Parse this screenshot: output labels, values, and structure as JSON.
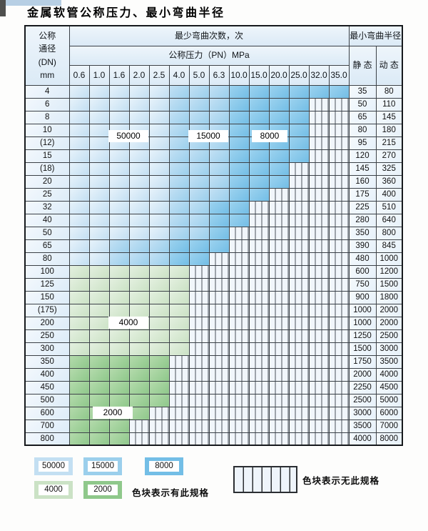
{
  "title": "金属软管公称压力、最小弯曲半径",
  "table": {
    "dn_header_lines": [
      "公称",
      "通径",
      "(DN)",
      "mm"
    ],
    "bend_cycles_header": "最少弯曲次数，次",
    "pressure_header": "公称压力（PN）MPa",
    "pressure_columns": [
      "0.6",
      "1.0",
      "1.6",
      "2.0",
      "2.5",
      "4.0",
      "5.0",
      "6.3",
      "10.0",
      "15.0",
      "20.0",
      "25.0",
      "32.0",
      "35.0"
    ],
    "radius_header": "最小弯曲半径",
    "static_header": "静 态",
    "dynamic_header": "动 态",
    "rows": [
      {
        "dn": "4",
        "static": "35",
        "dynamic": "80",
        "cells": [
          [
            "b1",
            5
          ],
          [
            "b2",
            3
          ],
          [
            "b3",
            6
          ]
        ]
      },
      {
        "dn": "6",
        "static": "50",
        "dynamic": "110",
        "cells": [
          [
            "b1",
            5
          ],
          [
            "b2",
            3
          ],
          [
            "b3",
            4
          ],
          [
            "x",
            2
          ]
        ]
      },
      {
        "dn": "8",
        "static": "65",
        "dynamic": "145",
        "cells": [
          [
            "b1",
            5
          ],
          [
            "b2",
            3
          ],
          [
            "b3",
            4
          ],
          [
            "x",
            2
          ]
        ]
      },
      {
        "dn": "10",
        "static": "80",
        "dynamic": "180",
        "cells": [
          [
            "b1",
            5
          ],
          [
            "b2",
            3
          ],
          [
            "b3",
            4
          ],
          [
            "x",
            2
          ]
        ]
      },
      {
        "dn": "(12)",
        "static": "95",
        "dynamic": "215",
        "cells": [
          [
            "b1",
            5
          ],
          [
            "b2",
            3
          ],
          [
            "b3",
            4
          ],
          [
            "x",
            2
          ]
        ]
      },
      {
        "dn": "15",
        "static": "120",
        "dynamic": "270",
        "cells": [
          [
            "b1",
            5
          ],
          [
            "b2",
            3
          ],
          [
            "b3",
            4
          ],
          [
            "x",
            2
          ]
        ]
      },
      {
        "dn": "(18)",
        "static": "145",
        "dynamic": "325",
        "cells": [
          [
            "b1",
            5
          ],
          [
            "b2",
            3
          ],
          [
            "b3",
            3
          ],
          [
            "x",
            3
          ]
        ]
      },
      {
        "dn": "20",
        "static": "160",
        "dynamic": "360",
        "cells": [
          [
            "b1",
            5
          ],
          [
            "b2",
            3
          ],
          [
            "b3",
            3
          ],
          [
            "x",
            3
          ]
        ]
      },
      {
        "dn": "25",
        "static": "175",
        "dynamic": "400",
        "cells": [
          [
            "b1",
            5
          ],
          [
            "b2",
            3
          ],
          [
            "b3",
            2
          ],
          [
            "x",
            4
          ]
        ]
      },
      {
        "dn": "32",
        "static": "225",
        "dynamic": "510",
        "cells": [
          [
            "b1",
            5
          ],
          [
            "b2",
            2
          ],
          [
            "b3",
            2
          ],
          [
            "x",
            5
          ]
        ]
      },
      {
        "dn": "40",
        "static": "280",
        "dynamic": "640",
        "cells": [
          [
            "b1",
            5
          ],
          [
            "b2",
            2
          ],
          [
            "b3",
            2
          ],
          [
            "x",
            5
          ]
        ]
      },
      {
        "dn": "50",
        "static": "350",
        "dynamic": "800",
        "cells": [
          [
            "b1",
            5
          ],
          [
            "b2",
            2
          ],
          [
            "b3",
            1
          ],
          [
            "x",
            6
          ]
        ]
      },
      {
        "dn": "65",
        "static": "390",
        "dynamic": "845",
        "cells": [
          [
            "b1",
            2
          ],
          [
            "b2",
            3
          ],
          [
            "b3",
            3
          ],
          [
            "x",
            6
          ]
        ]
      },
      {
        "dn": "80",
        "static": "480",
        "dynamic": "1000",
        "cells": [
          [
            "b1",
            2
          ],
          [
            "b2",
            3
          ],
          [
            "b3",
            2
          ],
          [
            "x",
            7
          ]
        ]
      },
      {
        "dn": "100",
        "static": "600",
        "dynamic": "1200",
        "cells": [
          [
            "g1",
            6
          ],
          [
            "x",
            8
          ]
        ]
      },
      {
        "dn": "125",
        "static": "750",
        "dynamic": "1500",
        "cells": [
          [
            "g1",
            6
          ],
          [
            "x",
            8
          ]
        ]
      },
      {
        "dn": "150",
        "static": "900",
        "dynamic": "1800",
        "cells": [
          [
            "g1",
            6
          ],
          [
            "x",
            8
          ]
        ]
      },
      {
        "dn": "(175)",
        "static": "1000",
        "dynamic": "2000",
        "cells": [
          [
            "g1",
            6
          ],
          [
            "x",
            8
          ]
        ]
      },
      {
        "dn": "200",
        "static": "1000",
        "dynamic": "2000",
        "cells": [
          [
            "g1",
            6
          ],
          [
            "x",
            8
          ]
        ]
      },
      {
        "dn": "250",
        "static": "1250",
        "dynamic": "2500",
        "cells": [
          [
            "g1",
            6
          ],
          [
            "x",
            8
          ]
        ]
      },
      {
        "dn": "300",
        "static": "1500",
        "dynamic": "3000",
        "cells": [
          [
            "g1",
            6
          ],
          [
            "x",
            8
          ]
        ]
      },
      {
        "dn": "350",
        "static": "1750",
        "dynamic": "3500",
        "cells": [
          [
            "g2",
            5
          ],
          [
            "x",
            9
          ]
        ]
      },
      {
        "dn": "400",
        "static": "2000",
        "dynamic": "4000",
        "cells": [
          [
            "g2",
            5
          ],
          [
            "x",
            9
          ]
        ]
      },
      {
        "dn": "450",
        "static": "2250",
        "dynamic": "4500",
        "cells": [
          [
            "g2",
            5
          ],
          [
            "x",
            9
          ]
        ]
      },
      {
        "dn": "500",
        "static": "2500",
        "dynamic": "5000",
        "cells": [
          [
            "g2",
            5
          ],
          [
            "x",
            9
          ]
        ]
      },
      {
        "dn": "600",
        "static": "3000",
        "dynamic": "6000",
        "cells": [
          [
            "g2",
            4
          ],
          [
            "x",
            10
          ]
        ]
      },
      {
        "dn": "700",
        "static": "3500",
        "dynamic": "7000",
        "cells": [
          [
            "g2",
            3
          ],
          [
            "x",
            11
          ]
        ]
      },
      {
        "dn": "800",
        "static": "4000",
        "dynamic": "8000",
        "cells": [
          [
            "g2",
            3
          ],
          [
            "x",
            11
          ]
        ]
      }
    ]
  },
  "zone_colors": {
    "b1": [
      "#e8f3fb",
      "#c3dff2"
    ],
    "b2": [
      "#c4e1f4",
      "#9bcfec"
    ],
    "b3": [
      "#9ed3ef",
      "#73bee6"
    ],
    "g1": [
      "#e4f0e0",
      "#cbe2c5"
    ],
    "g2": [
      "#b5dbad",
      "#8fc88b"
    ],
    "no_spec_bg": "#f1f6fb"
  },
  "markers": [
    "50000",
    "15000",
    "8000",
    "4000",
    "2000"
  ],
  "legend": {
    "items": [
      {
        "label": "50000",
        "zone": "b1"
      },
      {
        "label": "15000",
        "zone": "b2"
      },
      {
        "label": "8000",
        "zone": "b3"
      },
      {
        "label": "4000",
        "zone": "g1"
      },
      {
        "label": "2000",
        "zone": "g2"
      }
    ],
    "has_spec_note": "色块表示有此规格",
    "no_spec_note": "色块表示无此规格"
  }
}
